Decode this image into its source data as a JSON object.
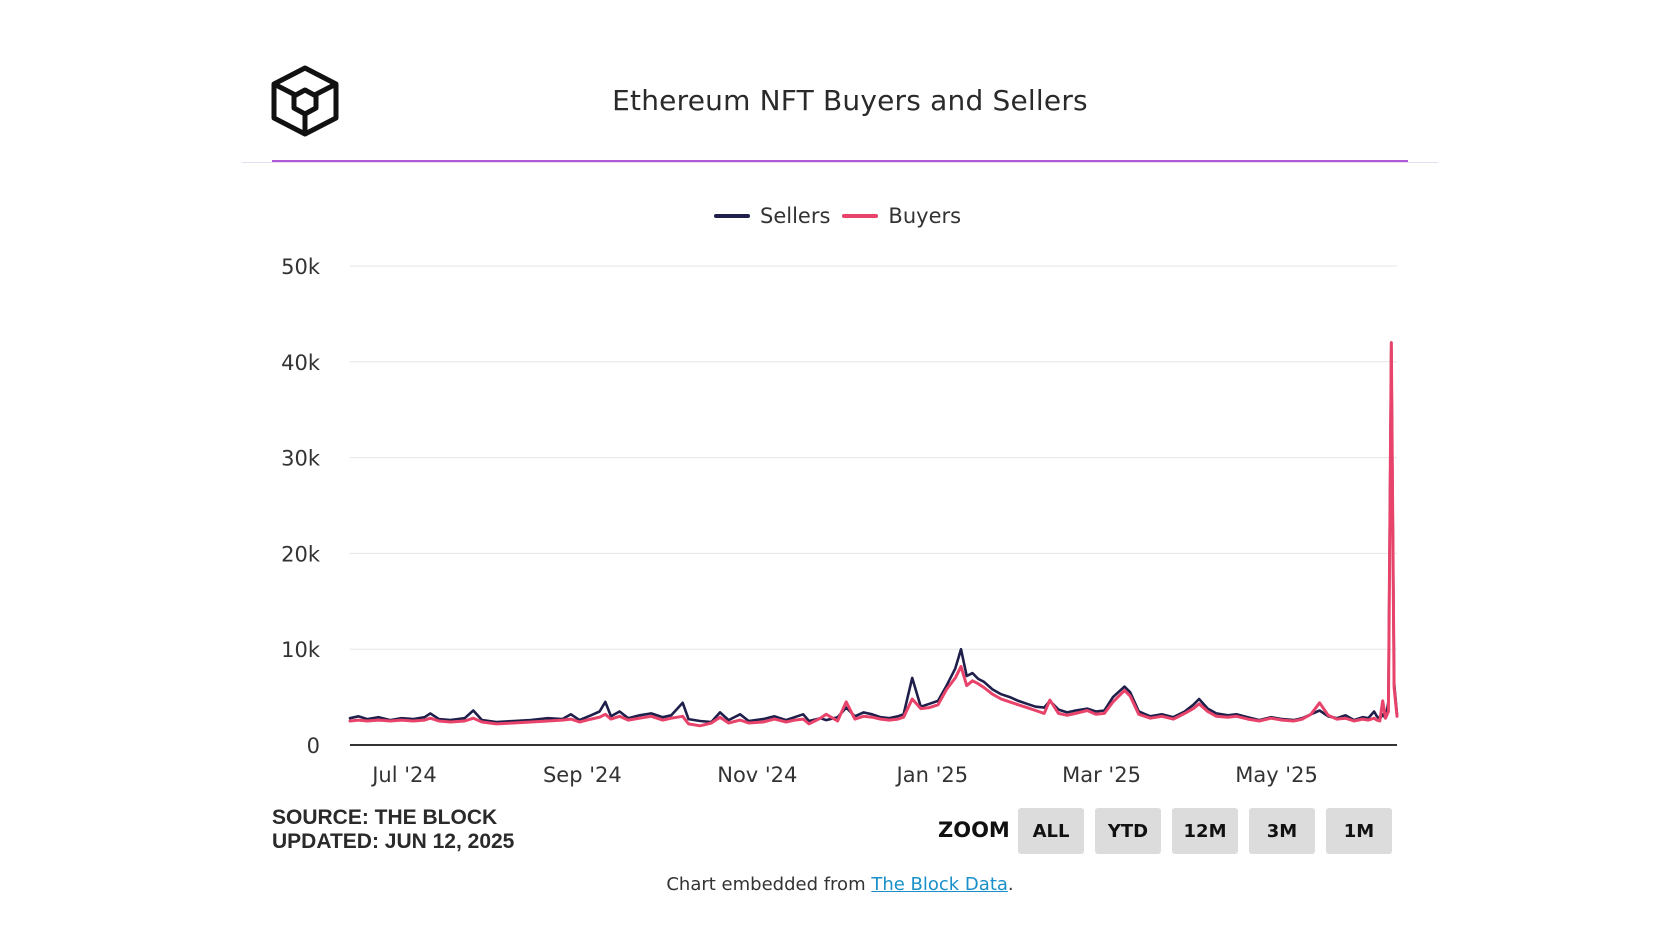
{
  "header": {
    "title": "Ethereum NFT Buyers and Sellers",
    "logo_icon": "the-block-cube-logo-icon"
  },
  "legend": {
    "items": [
      {
        "label": "Sellers",
        "color": "#1f1f4b"
      },
      {
        "label": "Buyers",
        "color": "#e8436a"
      }
    ]
  },
  "footer": {
    "source_line": "SOURCE: THE BLOCK",
    "updated_line": "UPDATED: JUN 12, 2025",
    "zoom_label": "ZOOM",
    "zoom_buttons": [
      "ALL",
      "YTD",
      "12M",
      "3M",
      "1M"
    ],
    "embed_prefix": "Chart embedded from ",
    "embed_link": "The Block Data",
    "embed_suffix": "."
  },
  "colors": {
    "accent_rule": "#b05ad6",
    "sellers": "#1f1f4b",
    "buyers": "#e8436a",
    "link": "#1a8fc9"
  },
  "chart_data": {
    "type": "line",
    "title": "Ethereum NFT Buyers and Sellers",
    "xlabel": "",
    "ylabel": "",
    "x_range": [
      "2024-06-12",
      "2025-06-12"
    ],
    "ylim": [
      0,
      50000
    ],
    "y_ticks": [
      0,
      10000,
      20000,
      30000,
      40000,
      50000
    ],
    "y_tick_labels": [
      "0",
      "10k",
      "20k",
      "30k",
      "40k",
      "50k"
    ],
    "x_ticks": [
      "2024-07-01",
      "2024-09-01",
      "2024-11-01",
      "2025-01-01",
      "2025-03-01",
      "2025-05-01"
    ],
    "x_tick_labels": [
      "Jul '24",
      "Sep '24",
      "Nov '24",
      "Jan '25",
      "Mar '25",
      "May '25"
    ],
    "grid": true,
    "legend_position": "top-center",
    "series": [
      {
        "name": "Sellers",
        "points": [
          [
            "2024-06-12",
            2800
          ],
          [
            "2024-06-15",
            3000
          ],
          [
            "2024-06-18",
            2700
          ],
          [
            "2024-06-22",
            2900
          ],
          [
            "2024-06-26",
            2600
          ],
          [
            "2024-06-30",
            2800
          ],
          [
            "2024-07-04",
            2700
          ],
          [
            "2024-07-08",
            2900
          ],
          [
            "2024-07-10",
            3300
          ],
          [
            "2024-07-13",
            2700
          ],
          [
            "2024-07-17",
            2600
          ],
          [
            "2024-07-22",
            2800
          ],
          [
            "2024-07-25",
            3600
          ],
          [
            "2024-07-28",
            2600
          ],
          [
            "2024-08-02",
            2400
          ],
          [
            "2024-08-08",
            2500
          ],
          [
            "2024-08-14",
            2600
          ],
          [
            "2024-08-20",
            2800
          ],
          [
            "2024-08-25",
            2700
          ],
          [
            "2024-08-28",
            3200
          ],
          [
            "2024-08-31",
            2600
          ],
          [
            "2024-09-04",
            3100
          ],
          [
            "2024-09-07",
            3500
          ],
          [
            "2024-09-09",
            4500
          ],
          [
            "2024-09-11",
            3000
          ],
          [
            "2024-09-14",
            3500
          ],
          [
            "2024-09-17",
            2800
          ],
          [
            "2024-09-21",
            3100
          ],
          [
            "2024-09-25",
            3300
          ],
          [
            "2024-09-29",
            2900
          ],
          [
            "2024-10-02",
            3100
          ],
          [
            "2024-10-06",
            4400
          ],
          [
            "2024-10-08",
            2700
          ],
          [
            "2024-10-12",
            2500
          ],
          [
            "2024-10-16",
            2400
          ],
          [
            "2024-10-19",
            3400
          ],
          [
            "2024-10-22",
            2600
          ],
          [
            "2024-10-26",
            3200
          ],
          [
            "2024-10-29",
            2500
          ],
          [
            "2024-11-03",
            2700
          ],
          [
            "2024-11-07",
            3000
          ],
          [
            "2024-11-11",
            2600
          ],
          [
            "2024-11-14",
            2900
          ],
          [
            "2024-11-17",
            3200
          ],
          [
            "2024-11-19",
            2500
          ],
          [
            "2024-11-23",
            2800
          ],
          [
            "2024-11-25",
            2600
          ],
          [
            "2024-11-29",
            2900
          ],
          [
            "2024-12-02",
            3900
          ],
          [
            "2024-12-05",
            3000
          ],
          [
            "2024-12-08",
            3400
          ],
          [
            "2024-12-11",
            3200
          ],
          [
            "2024-12-14",
            2900
          ],
          [
            "2024-12-17",
            2800
          ],
          [
            "2024-12-20",
            3000
          ],
          [
            "2024-12-22",
            3200
          ],
          [
            "2024-12-25",
            7000
          ],
          [
            "2024-12-28",
            4000
          ],
          [
            "2024-12-31",
            4300
          ],
          [
            "2025-01-03",
            4600
          ],
          [
            "2025-01-06",
            6200
          ],
          [
            "2025-01-09",
            8000
          ],
          [
            "2025-01-11",
            10000
          ],
          [
            "2025-01-13",
            7200
          ],
          [
            "2025-01-15",
            7500
          ],
          [
            "2025-01-17",
            6900
          ],
          [
            "2025-01-19",
            6600
          ],
          [
            "2025-01-22",
            5800
          ],
          [
            "2025-01-25",
            5300
          ],
          [
            "2025-01-28",
            5000
          ],
          [
            "2025-01-31",
            4600
          ],
          [
            "2025-02-03",
            4300
          ],
          [
            "2025-02-06",
            4000
          ],
          [
            "2025-02-09",
            3900
          ],
          [
            "2025-02-11",
            4600
          ],
          [
            "2025-02-14",
            3700
          ],
          [
            "2025-02-17",
            3400
          ],
          [
            "2025-02-20",
            3600
          ],
          [
            "2025-02-24",
            3800
          ],
          [
            "2025-02-27",
            3500
          ],
          [
            "2025-03-02",
            3600
          ],
          [
            "2025-03-05",
            5000
          ],
          [
            "2025-03-09",
            6100
          ],
          [
            "2025-03-11",
            5500
          ],
          [
            "2025-03-14",
            3500
          ],
          [
            "2025-03-18",
            3000
          ],
          [
            "2025-03-22",
            3200
          ],
          [
            "2025-03-26",
            2900
          ],
          [
            "2025-03-30",
            3500
          ],
          [
            "2025-04-02",
            4200
          ],
          [
            "2025-04-04",
            4800
          ],
          [
            "2025-04-07",
            3800
          ],
          [
            "2025-04-10",
            3300
          ],
          [
            "2025-04-14",
            3100
          ],
          [
            "2025-04-17",
            3200
          ],
          [
            "2025-04-21",
            2900
          ],
          [
            "2025-04-25",
            2600
          ],
          [
            "2025-04-29",
            2900
          ],
          [
            "2025-05-03",
            2700
          ],
          [
            "2025-05-07",
            2600
          ],
          [
            "2025-05-10",
            2800
          ],
          [
            "2025-05-13",
            3200
          ],
          [
            "2025-05-16",
            3600
          ],
          [
            "2025-05-19",
            3000
          ],
          [
            "2025-05-22",
            2800
          ],
          [
            "2025-05-25",
            3100
          ],
          [
            "2025-05-28",
            2600
          ],
          [
            "2025-05-31",
            2900
          ],
          [
            "2025-06-02",
            2800
          ],
          [
            "2025-06-04",
            3500
          ],
          [
            "2025-06-05",
            3000
          ],
          [
            "2025-06-06",
            2700
          ],
          [
            "2025-06-07",
            3200
          ],
          [
            "2025-06-08",
            2800
          ],
          [
            "2025-06-09",
            4500
          ],
          [
            "2025-06-10",
            42000
          ],
          [
            "2025-06-11",
            6500
          ],
          [
            "2025-06-12",
            3200
          ]
        ]
      },
      {
        "name": "Buyers",
        "points": [
          [
            "2024-06-12",
            2500
          ],
          [
            "2024-06-15",
            2600
          ],
          [
            "2024-06-18",
            2500
          ],
          [
            "2024-06-22",
            2600
          ],
          [
            "2024-06-26",
            2500
          ],
          [
            "2024-06-30",
            2600
          ],
          [
            "2024-07-04",
            2500
          ],
          [
            "2024-07-08",
            2600
          ],
          [
            "2024-07-10",
            2800
          ],
          [
            "2024-07-13",
            2500
          ],
          [
            "2024-07-17",
            2400
          ],
          [
            "2024-07-22",
            2500
          ],
          [
            "2024-07-25",
            2800
          ],
          [
            "2024-07-28",
            2400
          ],
          [
            "2024-08-02",
            2200
          ],
          [
            "2024-08-08",
            2300
          ],
          [
            "2024-08-14",
            2400
          ],
          [
            "2024-08-20",
            2500
          ],
          [
            "2024-08-25",
            2600
          ],
          [
            "2024-08-28",
            2700
          ],
          [
            "2024-08-31",
            2400
          ],
          [
            "2024-09-04",
            2700
          ],
          [
            "2024-09-07",
            2900
          ],
          [
            "2024-09-09",
            3200
          ],
          [
            "2024-09-11",
            2700
          ],
          [
            "2024-09-14",
            3000
          ],
          [
            "2024-09-17",
            2600
          ],
          [
            "2024-09-21",
            2800
          ],
          [
            "2024-09-25",
            3000
          ],
          [
            "2024-09-29",
            2600
          ],
          [
            "2024-10-02",
            2800
          ],
          [
            "2024-10-06",
            3000
          ],
          [
            "2024-10-08",
            2200
          ],
          [
            "2024-10-12",
            2000
          ],
          [
            "2024-10-16",
            2300
          ],
          [
            "2024-10-19",
            2900
          ],
          [
            "2024-10-22",
            2300
          ],
          [
            "2024-10-26",
            2600
          ],
          [
            "2024-10-29",
            2300
          ],
          [
            "2024-11-03",
            2400
          ],
          [
            "2024-11-07",
            2700
          ],
          [
            "2024-11-11",
            2400
          ],
          [
            "2024-11-14",
            2600
          ],
          [
            "2024-11-17",
            2700
          ],
          [
            "2024-11-19",
            2200
          ],
          [
            "2024-11-23",
            2800
          ],
          [
            "2024-11-25",
            3200
          ],
          [
            "2024-11-29",
            2500
          ],
          [
            "2024-12-02",
            4500
          ],
          [
            "2024-12-05",
            2700
          ],
          [
            "2024-12-08",
            3000
          ],
          [
            "2024-12-11",
            2900
          ],
          [
            "2024-12-14",
            2700
          ],
          [
            "2024-12-17",
            2600
          ],
          [
            "2024-12-20",
            2700
          ],
          [
            "2024-12-22",
            2900
          ],
          [
            "2024-12-25",
            4800
          ],
          [
            "2024-12-28",
            3800
          ],
          [
            "2024-12-31",
            3900
          ],
          [
            "2025-01-03",
            4200
          ],
          [
            "2025-01-06",
            5800
          ],
          [
            "2025-01-09",
            7000
          ],
          [
            "2025-01-11",
            8200
          ],
          [
            "2025-01-13",
            6200
          ],
          [
            "2025-01-15",
            6700
          ],
          [
            "2025-01-17",
            6400
          ],
          [
            "2025-01-19",
            6000
          ],
          [
            "2025-01-22",
            5300
          ],
          [
            "2025-01-25",
            4800
          ],
          [
            "2025-01-28",
            4500
          ],
          [
            "2025-01-31",
            4200
          ],
          [
            "2025-02-03",
            3900
          ],
          [
            "2025-02-06",
            3600
          ],
          [
            "2025-02-09",
            3300
          ],
          [
            "2025-02-11",
            4700
          ],
          [
            "2025-02-14",
            3300
          ],
          [
            "2025-02-17",
            3100
          ],
          [
            "2025-02-20",
            3300
          ],
          [
            "2025-02-24",
            3600
          ],
          [
            "2025-02-27",
            3200
          ],
          [
            "2025-03-02",
            3300
          ],
          [
            "2025-03-05",
            4500
          ],
          [
            "2025-03-09",
            5700
          ],
          [
            "2025-03-11",
            5100
          ],
          [
            "2025-03-14",
            3200
          ],
          [
            "2025-03-18",
            2800
          ],
          [
            "2025-03-22",
            3000
          ],
          [
            "2025-03-26",
            2700
          ],
          [
            "2025-03-30",
            3300
          ],
          [
            "2025-04-02",
            3800
          ],
          [
            "2025-04-04",
            4300
          ],
          [
            "2025-04-07",
            3500
          ],
          [
            "2025-04-10",
            3000
          ],
          [
            "2025-04-14",
            2900
          ],
          [
            "2025-04-17",
            3000
          ],
          [
            "2025-04-21",
            2700
          ],
          [
            "2025-04-25",
            2500
          ],
          [
            "2025-04-29",
            2800
          ],
          [
            "2025-05-03",
            2600
          ],
          [
            "2025-05-07",
            2500
          ],
          [
            "2025-05-10",
            2700
          ],
          [
            "2025-05-13",
            3200
          ],
          [
            "2025-05-16",
            4400
          ],
          [
            "2025-05-19",
            3100
          ],
          [
            "2025-05-22",
            2700
          ],
          [
            "2025-05-25",
            2800
          ],
          [
            "2025-05-28",
            2500
          ],
          [
            "2025-05-31",
            2700
          ],
          [
            "2025-06-02",
            2600
          ],
          [
            "2025-06-04",
            2800
          ],
          [
            "2025-06-05",
            2600
          ],
          [
            "2025-06-06",
            2500
          ],
          [
            "2025-06-07",
            4600
          ],
          [
            "2025-06-08",
            2800
          ],
          [
            "2025-06-09",
            3500
          ],
          [
            "2025-06-10",
            42000
          ],
          [
            "2025-06-11",
            6000
          ],
          [
            "2025-06-12",
            3000
          ]
        ]
      }
    ]
  }
}
